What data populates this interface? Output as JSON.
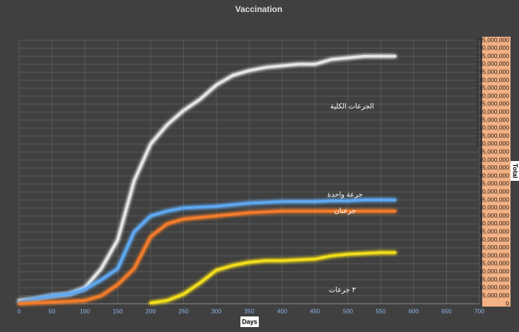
{
  "chart_data": {
    "type": "line",
    "title": "Vaccination",
    "x_label": "Days",
    "y_label": "Total",
    "x": [
      0,
      25,
      50,
      75,
      100,
      125,
      150,
      175,
      200,
      225,
      250,
      275,
      300,
      325,
      350,
      375,
      400,
      425,
      450,
      475,
      500,
      525,
      550,
      572
    ],
    "series": [
      {
        "name": "الجرعات الكلية",
        "color": "#e6e6e6",
        "values": [
          2000000,
          3000000,
          5000000,
          6000000,
          10000000,
          22000000,
          40000000,
          77000000,
          100000000,
          112000000,
          121000000,
          128000000,
          137000000,
          143000000,
          146000000,
          148000000,
          149000000,
          150000000,
          150000000,
          153000000,
          154000000,
          155000000,
          155000000,
          155000000
        ]
      },
      {
        "name": "جرعة واحدة",
        "color": "#5fa9f2",
        "values": [
          1000000,
          3000000,
          5000000,
          6000000,
          9000000,
          15000000,
          22000000,
          45000000,
          55000000,
          58000000,
          60000000,
          60500000,
          61000000,
          62000000,
          63000000,
          63500000,
          64000000,
          64000000,
          64000000,
          64500000,
          64500000,
          65000000,
          65000000,
          65000000
        ]
      },
      {
        "name": "جرعتان",
        "color": "#f47c2c",
        "values": [
          0,
          500000,
          1000000,
          1500000,
          2000000,
          5000000,
          12000000,
          22000000,
          42000000,
          50000000,
          53000000,
          54000000,
          55000000,
          56000000,
          57000000,
          57500000,
          58000000,
          58000000,
          58000000,
          58000000,
          58000000,
          58000000,
          58000000,
          58000000
        ]
      },
      {
        "name": "٣ جرعات",
        "color": "#f2de1f",
        "values": [
          null,
          null,
          null,
          null,
          null,
          null,
          null,
          null,
          500000,
          2000000,
          6000000,
          13000000,
          21000000,
          24000000,
          26000000,
          27000000,
          27000000,
          27500000,
          28000000,
          30000000,
          31000000,
          31500000,
          32000000,
          32000000
        ]
      }
    ],
    "xlim": [
      0,
      700
    ],
    "xticks": [
      0,
      50,
      100,
      150,
      200,
      250,
      300,
      350,
      400,
      450,
      500,
      550,
      600,
      650,
      700
    ],
    "ylim": [
      0,
      165000000
    ],
    "yticks": [
      0,
      {
        "value": 5000000,
        "label": "5,000,000"
      },
      {
        "value": 10000000,
        "label": "10,000,000"
      },
      {
        "value": 15000000,
        "label": "15,000,000"
      },
      {
        "value": 20000000,
        "label": "20,000,000"
      },
      {
        "value": 25000000,
        "label": "25,000,000"
      },
      {
        "value": 30000000,
        "label": "30,000,000"
      },
      {
        "value": 35000000,
        "label": "35,000,000"
      },
      {
        "value": 40000000,
        "label": "40,000,000"
      },
      {
        "value": 45000000,
        "label": "45,000,000"
      },
      {
        "value": 50000000,
        "label": "50,000,000"
      },
      {
        "value": 55000000,
        "label": "55,000,000"
      },
      {
        "value": 60000000,
        "label": "60,000,000"
      },
      {
        "value": 65000000,
        "label": "65,000,000"
      },
      {
        "value": 70000000,
        "label": "70,000,000"
      },
      {
        "value": 75000000,
        "label": "75,000,000"
      },
      {
        "value": 80000000,
        "label": "80,000,000"
      },
      {
        "value": 85000000,
        "label": "85,000,000"
      },
      {
        "value": 90000000,
        "label": "90,000,000"
      },
      {
        "value": 95000000,
        "label": "95,000,000"
      },
      {
        "value": 100000000,
        "label": "100,000,000"
      },
      {
        "value": 105000000,
        "label": "105,000,000"
      },
      {
        "value": 110000000,
        "label": "110,000,000"
      },
      {
        "value": 115000000,
        "label": "115,000,000"
      },
      {
        "value": 120000000,
        "label": "120,000,000"
      },
      {
        "value": 125000000,
        "label": "125,000,000"
      },
      {
        "value": 130000000,
        "label": "130,000,000"
      },
      {
        "value": 135000000,
        "label": "135,000,000"
      },
      {
        "value": 140000000,
        "label": "140,000,000"
      },
      {
        "value": 145000000,
        "label": "145,000,000"
      },
      {
        "value": 150000000,
        "label": "150,000,000"
      },
      {
        "value": 155000000,
        "label": "155,000,000"
      },
      {
        "value": 160000000,
        "label": "160,000,000"
      },
      {
        "value": 165000000,
        "label": "165,000,000"
      }
    ],
    "grid": true
  }
}
